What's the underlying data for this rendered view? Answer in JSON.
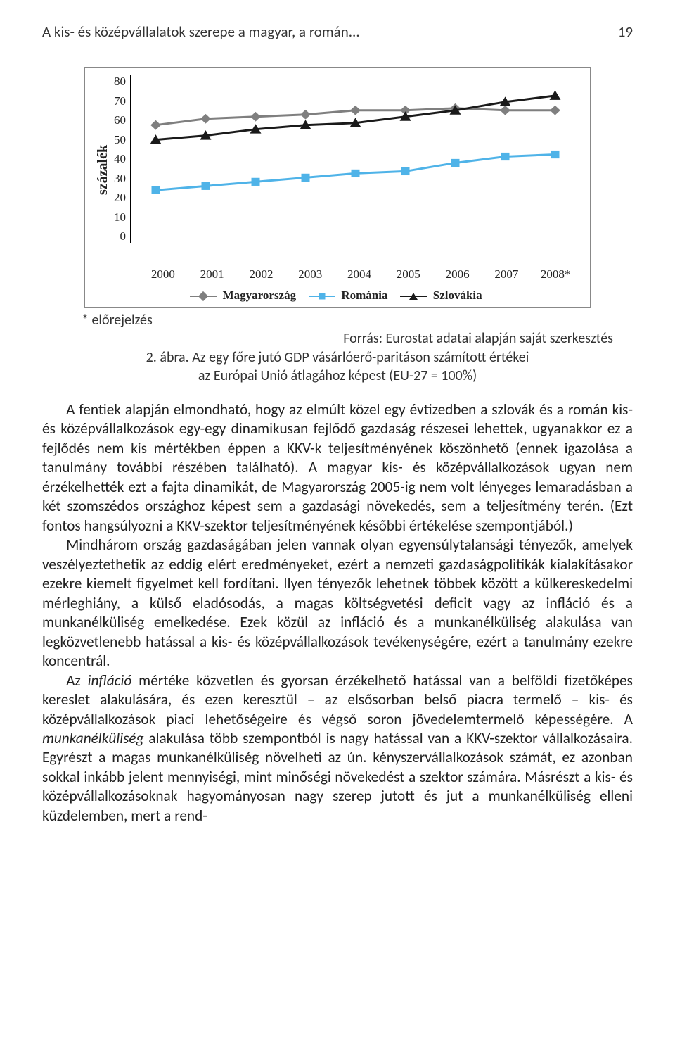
{
  "header": {
    "title": "A kis- és középvállalatok szerepe a magyar, a román...",
    "page_num": "19"
  },
  "chart": {
    "type": "line",
    "ylabel": "százalék",
    "ylim": [
      0,
      80
    ],
    "ytick_step": 10,
    "yticks": [
      "80",
      "70",
      "60",
      "50",
      "40",
      "30",
      "20",
      "10",
      "0"
    ],
    "categories": [
      "2000",
      "2001",
      "2002",
      "2003",
      "2004",
      "2005",
      "2006",
      "2007",
      "2008*"
    ],
    "series": [
      {
        "name": "Magyarország",
        "color": "#7f7f7f",
        "marker": "diamond",
        "values": [
          56,
          59,
          60,
          61,
          63,
          63,
          64,
          63,
          63
        ]
      },
      {
        "name": "Románia",
        "color": "#4fb3e8",
        "marker": "square",
        "values": [
          25,
          27,
          29,
          31,
          33,
          34,
          38,
          41,
          42
        ]
      },
      {
        "name": "Szlovákia",
        "color": "#1a1a1a",
        "marker": "triangle",
        "values": [
          49,
          51,
          54,
          56,
          57,
          60,
          63,
          67,
          70
        ]
      }
    ],
    "line_width": 3,
    "marker_size": 9,
    "background_color": "#ffffff",
    "grid": false
  },
  "legend": {
    "s1": "Magyarország",
    "s2": "Románia",
    "s3": "Szlovákia"
  },
  "caption": {
    "footnote": "* előrejelzés",
    "source": "Forrás: Eurostat adatai alapján saját szerkesztés",
    "fig_label": "2. ábra.",
    "fig_title_l1": "Az egy főre jutó GDP vásárlóerő-paritáson számított értékei",
    "fig_title_l2": "az Európai Unió átlagához képest (EU-27 = 100%)"
  },
  "body": {
    "p1a": "A fentiek alapján elmondható, hogy az elmúlt közel egy évtizedben a szlovák és a román kis- és középvállalkozások egy-egy dinamikusan fejlődő gazdaság részesei lehettek, ugyanakkor ez a fejlődés nem kis mértékben éppen a KKV-k teljesítményének köszönhető (ennek igazolása a tanulmány további részében található). A magyar kis- és középvállalkozások ugyan nem érzékelhették ezt a fajta dinamikát, de Magyarország 2005-ig nem volt lényeges lemaradásban a két szomszédos országhoz képest sem a gazdasági növekedés, sem a teljesítmény terén. (Ezt fontos hangsúlyozni a KKV-szektor teljesítményének későbbi értékelése szempontjából.)",
    "p2": "Mindhárom ország gazdaságában jelen vannak olyan egyensúlytalansági tényezők, amelyek veszélyeztethetik az eddig elért eredményeket, ezért a nemzeti gazdaságpolitikák kialakításakor ezekre kiemelt figyelmet kell fordítani. Ilyen tényezők lehetnek többek között a külkereskedelmi mérleghiány, a külső eladósodás, a magas költségvetési deficit vagy az infláció és a munkanélküliség emelkedése. Ezek közül az infláció és a munkanélküliség alakulása van legközvetlenebb hatással a kis- és középvállalkozások tevékenységére, ezért a tanulmány ezekre koncentrál.",
    "p3_a": "Az ",
    "p3_inflation": "infláció",
    "p3_b": " mértéke közvetlen és gyorsan érzékelhető hatással van a belföldi fizetőképes kereslet alakulására, és ezen keresztül – az elsősorban belső piacra termelő – kis- és középvállalkozások piaci lehetőségeire és végső soron jövedelemtermelő képességére. A ",
    "p3_unemp": "munkanélküliség",
    "p3_c": " alakulása több szempontból is nagy hatással van a KKV-szektor vállalkozásaira. Egyrészt a magas munkanélküliség növelheti az ún. kényszervállalkozások számát, ez azonban sokkal inkább jelent mennyiségi, mint minőségi növekedést a szektor számára. Másrészt a kis- és középvállalkozásoknak hagyományosan nagy szerep jutott és jut a munkanélküliség elleni küzdelemben, mert a rend-"
  }
}
